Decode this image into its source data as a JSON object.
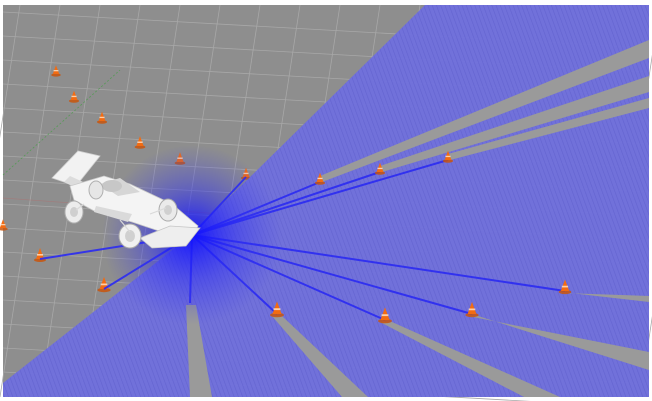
{
  "scene": {
    "view": "3d-simulation-viewport",
    "object": "formula-student-car",
    "object_icon": "race-car-icon",
    "marker_icon": "traffic-cone-icon",
    "cone_count": 17,
    "lidar_hits": 11,
    "colors": {
      "background": "#ffffff",
      "ground": "#8e8e8e",
      "grid": "#a6a6a6",
      "scan_fill": "#6f6fda",
      "beam": "#2a2af0",
      "gap": "#9a9a9a",
      "cone": "#f06a10",
      "car": "#f4f4f4"
    }
  }
}
